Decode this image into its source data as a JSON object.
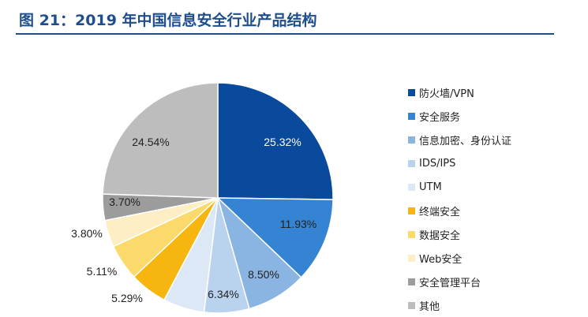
{
  "title": "图 21：2019 年中国信息安全行业产品结构",
  "chart_data": {
    "type": "pie",
    "legend_position": "right",
    "slices": [
      {
        "name": "防火墙/VPN",
        "value": 25.32,
        "label": "25.32%",
        "color": "#0a4a9c"
      },
      {
        "name": "安全服务",
        "value": 11.93,
        "label": "11.93%",
        "color": "#3584d3"
      },
      {
        "name": "信息加密、身份认证",
        "value": 8.5,
        "label": "8.50%",
        "color": "#8ab4e1"
      },
      {
        "name": "IDS/IPS",
        "value": 6.34,
        "label": "6.34%",
        "color": "#b9d3ef"
      },
      {
        "name": "UTM",
        "value": 5.81,
        "label": "",
        "color": "#dce8f6"
      },
      {
        "name": "终端安全",
        "value": 5.29,
        "label": "5.29%",
        "color": "#f6b50f"
      },
      {
        "name": "数据安全",
        "value": 5.11,
        "label": "5.11%",
        "color": "#fbd96b"
      },
      {
        "name": "Web安全",
        "value": 3.8,
        "label": "3.80%",
        "color": "#fdeec5"
      },
      {
        "name": "安全管理平台",
        "value": 3.7,
        "label": "3.70%",
        "color": "#9c9c9c"
      },
      {
        "name": "其他",
        "value": 24.54,
        "label": "24.54%",
        "color": "#bdbdbd"
      }
    ]
  }
}
